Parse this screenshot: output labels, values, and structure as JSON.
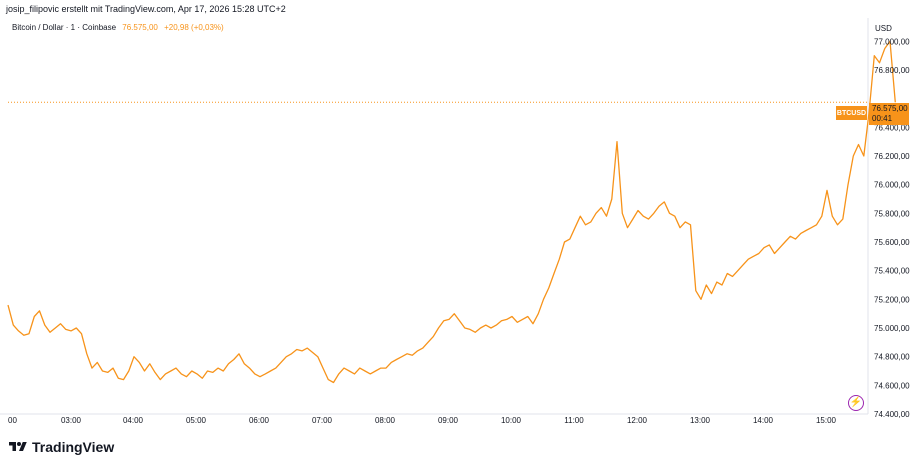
{
  "header": {
    "attribution": "josip_filipovic erstellt mit TradingView.com, Apr 17, 2026 15:28 UTC+2"
  },
  "symbol": {
    "name": "Bitcoin / Dollar · 1 · Coinbase",
    "last_price": "76.575,00",
    "change": "+20,98 (+0,03%)"
  },
  "currency": "USD",
  "price_tag": {
    "symbol": "BTCUSD",
    "price": "76.575,00",
    "countdown": "00:41"
  },
  "brand": {
    "name": "TradingView",
    "logo": "tradingview-logo"
  },
  "colors": {
    "line": "#f7931a",
    "tag": "#f7931a",
    "last_price_line": "#f7931a",
    "flash": "#9c27b0"
  },
  "icons": {
    "flash_button": "lightning-icon"
  },
  "chart_data": {
    "type": "line",
    "title": "Bitcoin / Dollar · 1 · Coinbase",
    "series": [
      {
        "name": "BTCUSD",
        "points": [
          [
            "02:00",
            75160
          ],
          [
            "02:05",
            75020
          ],
          [
            "02:10",
            74980
          ],
          [
            "02:15",
            74950
          ],
          [
            "02:20",
            74960
          ],
          [
            "02:25",
            75080
          ],
          [
            "02:30",
            75120
          ],
          [
            "02:35",
            75020
          ],
          [
            "02:40",
            74970
          ],
          [
            "02:45",
            75000
          ],
          [
            "02:50",
            75030
          ],
          [
            "02:55",
            74990
          ],
          [
            "03:00",
            74980
          ],
          [
            "03:05",
            75000
          ],
          [
            "03:10",
            74960
          ],
          [
            "03:15",
            74820
          ],
          [
            "03:20",
            74720
          ],
          [
            "03:25",
            74760
          ],
          [
            "03:30",
            74700
          ],
          [
            "03:35",
            74690
          ],
          [
            "03:40",
            74720
          ],
          [
            "03:45",
            74650
          ],
          [
            "03:50",
            74640
          ],
          [
            "03:55",
            74700
          ],
          [
            "04:00",
            74800
          ],
          [
            "04:05",
            74760
          ],
          [
            "04:10",
            74700
          ],
          [
            "04:15",
            74750
          ],
          [
            "04:20",
            74690
          ],
          [
            "04:25",
            74640
          ],
          [
            "04:30",
            74680
          ],
          [
            "04:35",
            74700
          ],
          [
            "04:40",
            74720
          ],
          [
            "04:45",
            74680
          ],
          [
            "04:50",
            74660
          ],
          [
            "04:55",
            74700
          ],
          [
            "05:00",
            74680
          ],
          [
            "05:05",
            74650
          ],
          [
            "05:10",
            74700
          ],
          [
            "05:15",
            74690
          ],
          [
            "05:20",
            74720
          ],
          [
            "05:25",
            74700
          ],
          [
            "05:30",
            74750
          ],
          [
            "05:35",
            74780
          ],
          [
            "05:40",
            74820
          ],
          [
            "05:45",
            74750
          ],
          [
            "05:50",
            74720
          ],
          [
            "05:55",
            74680
          ],
          [
            "06:00",
            74660
          ],
          [
            "06:05",
            74680
          ],
          [
            "06:10",
            74700
          ],
          [
            "06:15",
            74720
          ],
          [
            "06:20",
            74760
          ],
          [
            "06:25",
            74800
          ],
          [
            "06:30",
            74820
          ],
          [
            "06:35",
            74850
          ],
          [
            "06:40",
            74840
          ],
          [
            "06:45",
            74860
          ],
          [
            "06:50",
            74830
          ],
          [
            "06:55",
            74800
          ],
          [
            "07:00",
            74720
          ],
          [
            "07:05",
            74640
          ],
          [
            "07:10",
            74620
          ],
          [
            "07:15",
            74680
          ],
          [
            "07:20",
            74720
          ],
          [
            "07:25",
            74700
          ],
          [
            "07:30",
            74680
          ],
          [
            "07:35",
            74720
          ],
          [
            "07:40",
            74700
          ],
          [
            "07:45",
            74680
          ],
          [
            "07:50",
            74700
          ],
          [
            "07:55",
            74720
          ],
          [
            "08:00",
            74720
          ],
          [
            "08:05",
            74760
          ],
          [
            "08:10",
            74780
          ],
          [
            "08:15",
            74800
          ],
          [
            "08:20",
            74820
          ],
          [
            "08:25",
            74810
          ],
          [
            "08:30",
            74840
          ],
          [
            "08:35",
            74860
          ],
          [
            "08:40",
            74900
          ],
          [
            "08:45",
            74940
          ],
          [
            "08:50",
            75000
          ],
          [
            "08:55",
            75050
          ],
          [
            "09:00",
            75060
          ],
          [
            "09:05",
            75100
          ],
          [
            "09:10",
            75050
          ],
          [
            "09:15",
            75000
          ],
          [
            "09:20",
            74990
          ],
          [
            "09:25",
            74970
          ],
          [
            "09:30",
            75000
          ],
          [
            "09:35",
            75020
          ],
          [
            "09:40",
            75000
          ],
          [
            "09:45",
            75020
          ],
          [
            "09:50",
            75050
          ],
          [
            "09:55",
            75060
          ],
          [
            "10:00",
            75080
          ],
          [
            "10:05",
            75040
          ],
          [
            "10:10",
            75060
          ],
          [
            "10:15",
            75080
          ],
          [
            "10:20",
            75030
          ],
          [
            "10:25",
            75100
          ],
          [
            "10:30",
            75200
          ],
          [
            "10:35",
            75280
          ],
          [
            "10:40",
            75380
          ],
          [
            "10:45",
            75480
          ],
          [
            "10:50",
            75600
          ],
          [
            "10:55",
            75620
          ],
          [
            "11:00",
            75700
          ],
          [
            "11:05",
            75780
          ],
          [
            "11:10",
            75720
          ],
          [
            "11:15",
            75740
          ],
          [
            "11:20",
            75800
          ],
          [
            "11:25",
            75840
          ],
          [
            "11:30",
            75780
          ],
          [
            "11:35",
            75900
          ],
          [
            "11:40",
            76300
          ],
          [
            "11:45",
            75800
          ],
          [
            "11:50",
            75700
          ],
          [
            "11:55",
            75760
          ],
          [
            "12:00",
            75820
          ],
          [
            "12:05",
            75780
          ],
          [
            "12:10",
            75760
          ],
          [
            "12:15",
            75800
          ],
          [
            "12:20",
            75850
          ],
          [
            "12:25",
            75880
          ],
          [
            "12:30",
            75800
          ],
          [
            "12:35",
            75780
          ],
          [
            "12:40",
            75700
          ],
          [
            "12:45",
            75740
          ],
          [
            "12:50",
            75720
          ],
          [
            "12:55",
            75260
          ],
          [
            "13:00",
            75200
          ],
          [
            "13:05",
            75300
          ],
          [
            "13:10",
            75240
          ],
          [
            "13:15",
            75320
          ],
          [
            "13:20",
            75300
          ],
          [
            "13:25",
            75380
          ],
          [
            "13:30",
            75360
          ],
          [
            "13:35",
            75400
          ],
          [
            "13:40",
            75440
          ],
          [
            "13:45",
            75480
          ],
          [
            "13:50",
            75500
          ],
          [
            "13:55",
            75520
          ],
          [
            "14:00",
            75560
          ],
          [
            "14:05",
            75580
          ],
          [
            "14:10",
            75520
          ],
          [
            "14:15",
            75560
          ],
          [
            "14:20",
            75600
          ],
          [
            "14:25",
            75640
          ],
          [
            "14:30",
            75620
          ],
          [
            "14:35",
            75660
          ],
          [
            "14:40",
            75680
          ],
          [
            "14:45",
            75700
          ],
          [
            "14:50",
            75720
          ],
          [
            "14:55",
            75780
          ],
          [
            "15:00",
            75960
          ],
          [
            "15:05",
            75780
          ],
          [
            "15:10",
            75720
          ],
          [
            "15:15",
            75760
          ],
          [
            "15:20",
            76000
          ],
          [
            "15:25",
            76200
          ],
          [
            "15:30",
            76280
          ],
          [
            "15:35",
            76200
          ],
          [
            "15:40",
            76500
          ],
          [
            "15:45",
            76900
          ],
          [
            "15:50",
            76850
          ],
          [
            "15:55",
            76950
          ],
          [
            "16:00",
            77000
          ],
          [
            "16:05",
            76575
          ]
        ]
      }
    ],
    "x_ticks": [
      "00",
      "03:00",
      "04:00",
      "05:00",
      "06:00",
      "07:00",
      "08:00",
      "09:00",
      "10:00",
      "11:00",
      "12:00",
      "13:00",
      "14:00",
      "15:00"
    ],
    "y_ticks": [
      "77.000,00",
      "76.800,00",
      "76.400,00",
      "76.200,00",
      "76.000,00",
      "75.800,00",
      "75.600,00",
      "75.400,00",
      "75.200,00",
      "75.000,00",
      "74.800,00",
      "74.600,00",
      "74.400,00"
    ],
    "ylim": [
      74400,
      77100
    ],
    "last_price": 76575,
    "grid": false,
    "ylabel": "USD"
  }
}
